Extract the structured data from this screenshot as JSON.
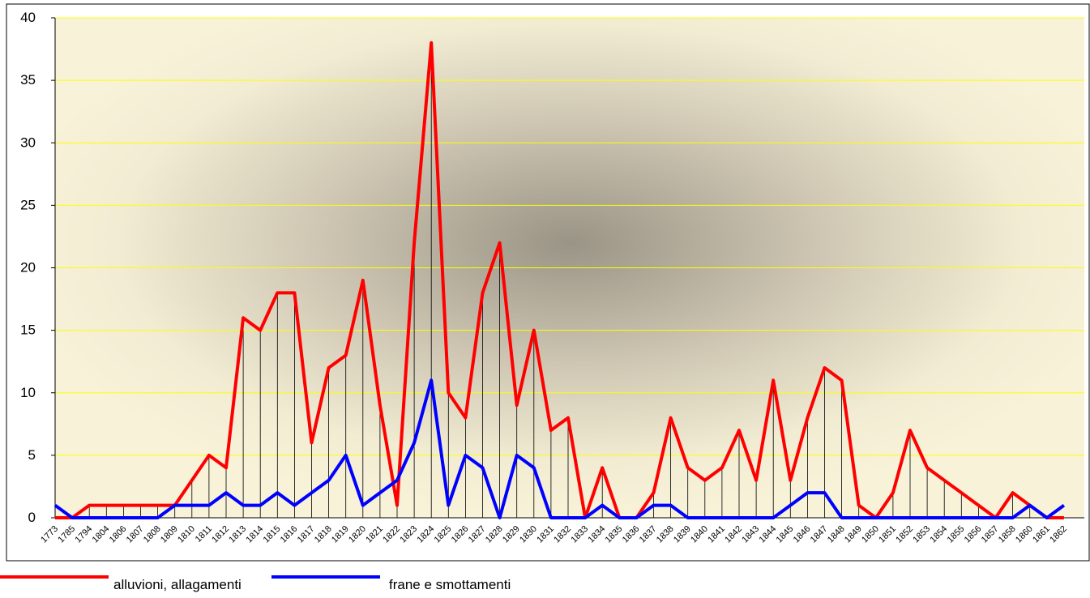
{
  "chart_data": {
    "type": "line",
    "categories": [
      "1773",
      "1785",
      "1794",
      "1804",
      "1806",
      "1807",
      "1808",
      "1809",
      "1810",
      "1811",
      "1812",
      "1813",
      "1814",
      "1815",
      "1816",
      "1817",
      "1818",
      "1819",
      "1820",
      "1821",
      "1822",
      "1823",
      "1824",
      "1825",
      "1826",
      "1827",
      "1828",
      "1829",
      "1830",
      "1831",
      "1832",
      "1833",
      "1834",
      "1835",
      "1836",
      "1837",
      "1838",
      "1839",
      "1840",
      "1841",
      "1842",
      "1843",
      "1844",
      "1845",
      "1846",
      "1847",
      "1848",
      "1849",
      "1850",
      "1851",
      "1852",
      "1853",
      "1854",
      "1855",
      "1856",
      "1857",
      "1858",
      "1860",
      "1861",
      "1862"
    ],
    "series": [
      {
        "name": "alluvioni, allagamenti",
        "color": "#ff0000",
        "values": [
          0,
          0,
          1,
          1,
          1,
          1,
          1,
          1,
          3,
          5,
          4,
          16,
          15,
          18,
          18,
          6,
          12,
          13,
          19,
          9,
          1,
          22,
          38,
          10,
          8,
          18,
          22,
          9,
          15,
          7,
          8,
          0,
          4,
          0,
          0,
          2,
          8,
          4,
          3,
          4,
          7,
          3,
          11,
          3,
          8,
          12,
          11,
          1,
          0,
          2,
          7,
          4,
          3,
          2,
          1,
          0,
          2,
          1,
          0,
          0
        ]
      },
      {
        "name": "frane e smottamenti",
        "color": "#0000ff",
        "values": [
          1,
          0,
          0,
          0,
          0,
          0,
          0,
          1,
          1,
          1,
          2,
          1,
          1,
          2,
          1,
          2,
          3,
          5,
          1,
          2,
          3,
          6,
          11,
          1,
          5,
          4,
          0,
          5,
          4,
          0,
          0,
          0,
          1,
          0,
          0,
          1,
          1,
          0,
          0,
          0,
          0,
          0,
          0,
          1,
          2,
          2,
          0,
          0,
          0,
          0,
          0,
          0,
          0,
          0,
          0,
          0,
          0,
          1,
          0,
          1
        ]
      }
    ],
    "ylim": [
      0,
      40
    ],
    "yticks": [
      0,
      5,
      10,
      15,
      20,
      25,
      30,
      35,
      40
    ],
    "grid": true,
    "drop_lines": true
  }
}
